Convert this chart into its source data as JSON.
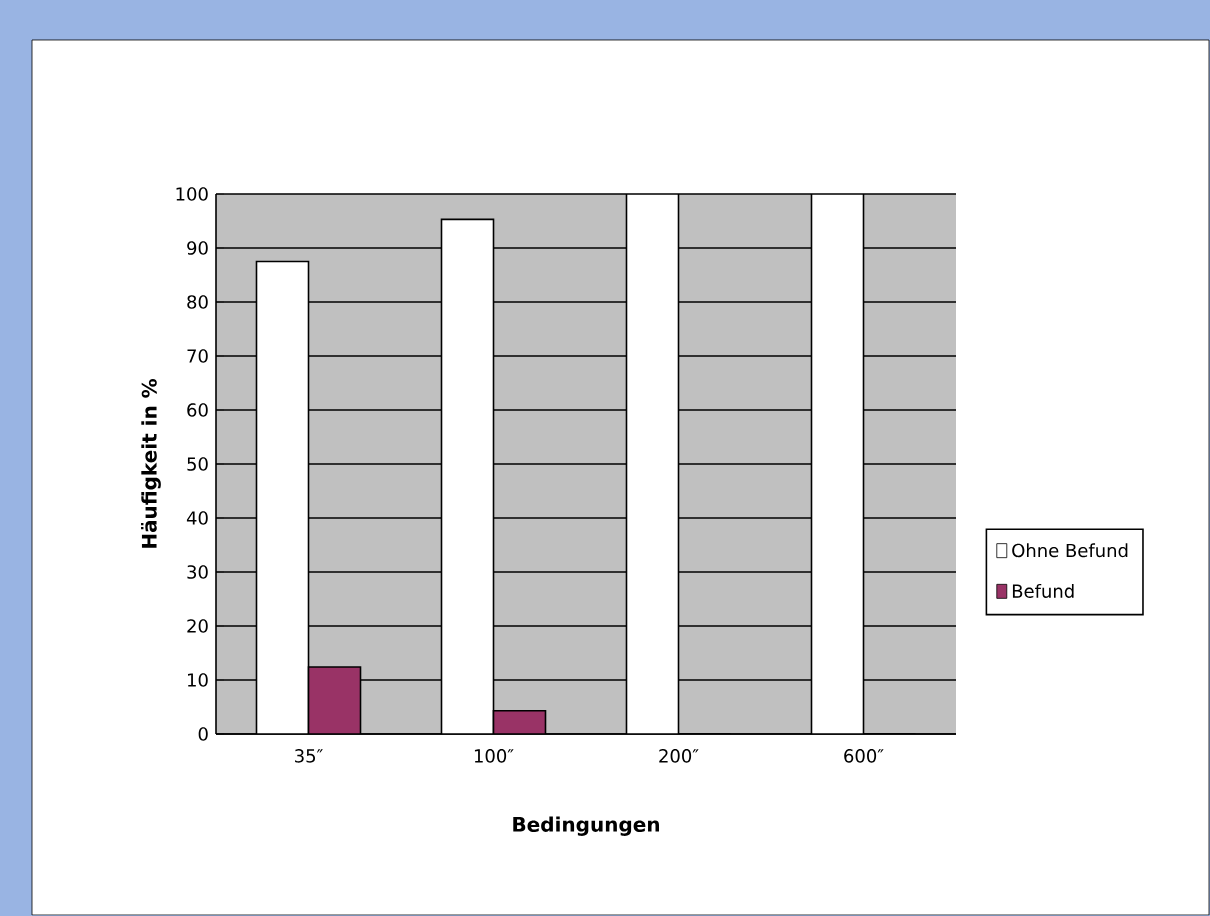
{
  "chart_data": {
    "type": "bar",
    "xlabel": "Bedingungen",
    "ylabel": "Häufigkeit in %",
    "categories": [
      "35″",
      "100″",
      "200″",
      "600″"
    ],
    "series": [
      {
        "name": "Ohne Befund",
        "color": "#ffffff",
        "values": [
          87.5,
          95.3,
          100,
          100
        ]
      },
      {
        "name": "Befund",
        "color": "#993366",
        "values": [
          12.4,
          4.3,
          0,
          0
        ]
      }
    ],
    "ylim": [
      0,
      100
    ],
    "yticks": [
      0,
      10,
      20,
      30,
      40,
      50,
      60,
      70,
      80,
      90,
      100
    ],
    "grid": "y",
    "legend": "right"
  }
}
